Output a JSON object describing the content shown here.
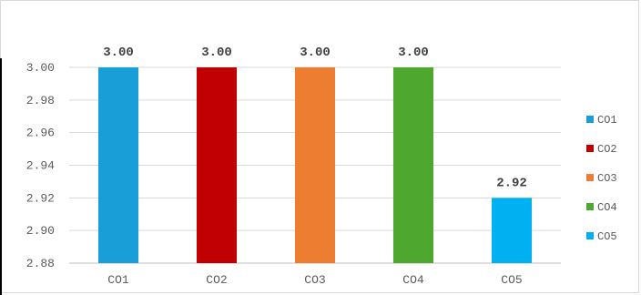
{
  "chart_data": {
    "type": "bar",
    "categories": [
      "CO1",
      "CO2",
      "CO3",
      "CO4",
      "CO5"
    ],
    "values": [
      3.0,
      3.0,
      3.0,
      3.0,
      2.92
    ],
    "data_labels": [
      "3.00",
      "3.00",
      "3.00",
      "3.00",
      "2.92"
    ],
    "colors": [
      "#1a9ed8",
      "#c00000",
      "#ed7d31",
      "#4ea72e",
      "#00b0f0"
    ],
    "title": "",
    "xlabel": "",
    "ylabel": "",
    "ylim": [
      2.88,
      3.0
    ],
    "yticks": [
      "2.88",
      "2.90",
      "2.92",
      "2.94",
      "2.96",
      "2.98",
      "3.00"
    ],
    "grid": true,
    "legend": {
      "position": "right",
      "entries": [
        "CO1",
        "CO2",
        "CO3",
        "CO4",
        "CO5"
      ]
    }
  }
}
